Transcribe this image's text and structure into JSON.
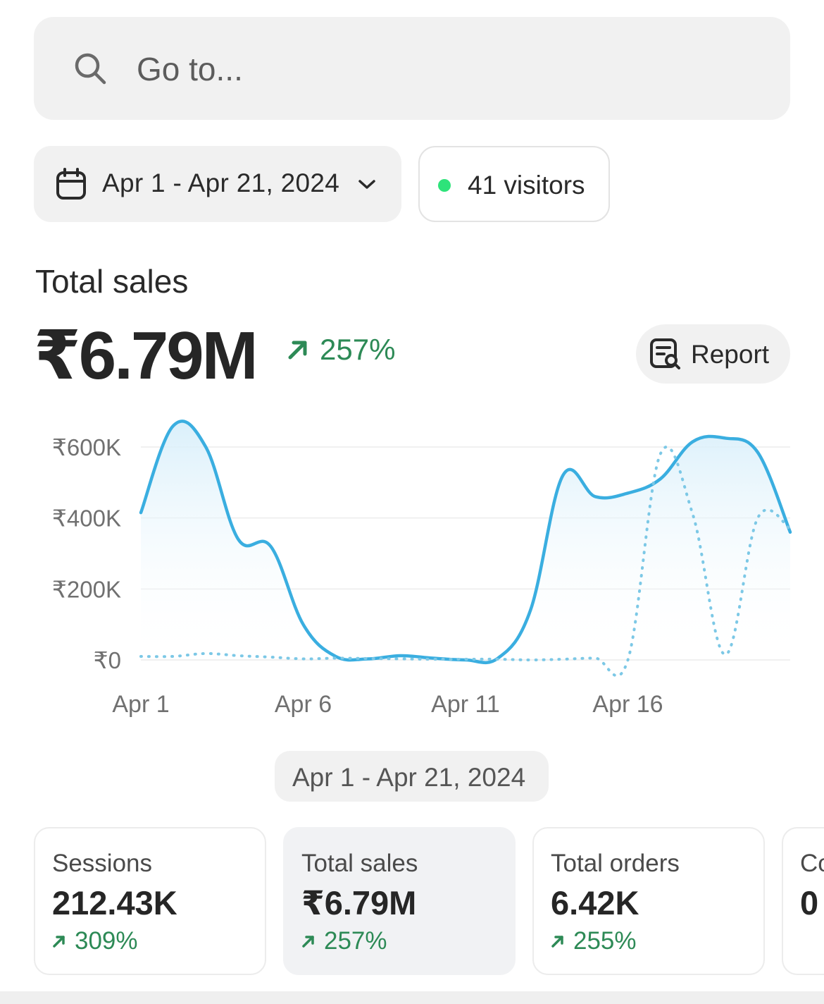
{
  "search": {
    "placeholder": "Go to..."
  },
  "filters": {
    "date_range_label": "Apr 1 - Apr 21, 2024",
    "visitors_label": "41 visitors",
    "live_dot_color": "#2ee37a"
  },
  "summary": {
    "title": "Total sales",
    "value": "₹6.79M",
    "delta": "257%",
    "report_label": "Report"
  },
  "chart_data": {
    "type": "line",
    "x": [
      "Apr 1",
      "Apr 2",
      "Apr 3",
      "Apr 4",
      "Apr 5",
      "Apr 6",
      "Apr 7",
      "Apr 8",
      "Apr 9",
      "Apr 10",
      "Apr 11",
      "Apr 12",
      "Apr 13",
      "Apr 14",
      "Apr 15",
      "Apr 16",
      "Apr 17",
      "Apr 18",
      "Apr 19",
      "Apr 20",
      "Apr 21"
    ],
    "x_tick_labels": [
      "Apr 1",
      "Apr 6",
      "Apr 11",
      "Apr 16"
    ],
    "y_tick_labels": [
      "₹0",
      "₹200K",
      "₹400K",
      "₹600K"
    ],
    "y_ticks": [
      0,
      200000,
      400000,
      600000
    ],
    "ylim": [
      0,
      600000
    ],
    "grid": true,
    "series": [
      {
        "style": "solid",
        "color": "#3aaee0",
        "values": [
          415000,
          660000,
          600000,
          340000,
          320000,
          100000,
          10000,
          3000,
          12000,
          5000,
          0,
          5000,
          140000,
          520000,
          460000,
          470000,
          510000,
          615000,
          625000,
          585000,
          360000
        ]
      },
      {
        "style": "dotted",
        "color": "#7cc8e6",
        "values": [
          10000,
          10000,
          18000,
          12000,
          8000,
          3000,
          5000,
          4000,
          3000,
          2000,
          2000,
          2000,
          0,
          2000,
          5000,
          0,
          580000,
          410000,
          15000,
          400000,
          370000
        ]
      }
    ]
  },
  "range_chip_label": "Apr 1 - Apr 21, 2024",
  "metrics": [
    {
      "label": "Sessions",
      "value": "212.43K",
      "delta": "309%"
    },
    {
      "label": "Total sales",
      "value": "₹6.79M",
      "delta": "257%"
    },
    {
      "label": "Total orders",
      "value": "6.42K",
      "delta": "255%"
    },
    {
      "label": "Co",
      "value": "0"
    }
  ],
  "colors": {
    "positive": "#2d8a56",
    "line": "#3aaee0"
  }
}
